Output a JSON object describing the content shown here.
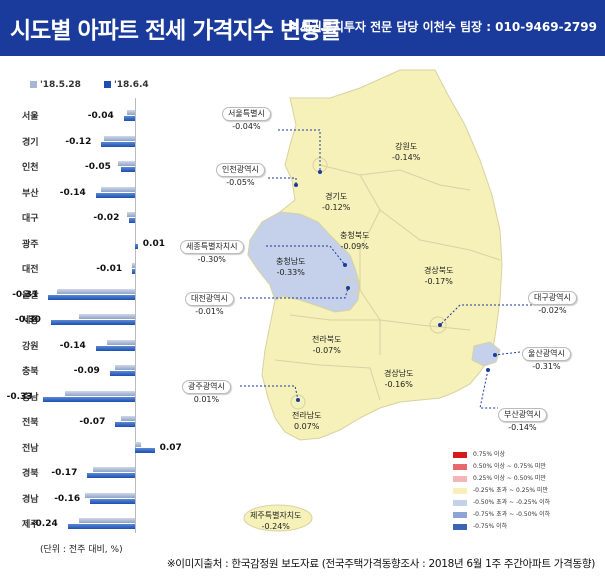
{
  "header": {
    "title": "시도별 아파트 전세 가격지수 변동률",
    "contact": "역세권토지투자 전문 담당 이천수 팀장 : 010-9469-2799"
  },
  "chart_legend": {
    "old": "'18.5.28",
    "new": "'18.6.4",
    "old_color": "#8fa3c8",
    "new_color": "#1f4fae"
  },
  "chart_data": {
    "type": "bar",
    "orientation": "horizontal",
    "categories": [
      "서울",
      "경기",
      "인천",
      "부산",
      "대구",
      "광주",
      "대전",
      "울산",
      "세종",
      "강원",
      "충북",
      "충남",
      "전북",
      "전남",
      "경북",
      "경남",
      "제주"
    ],
    "series": [
      {
        "name": "'18.5.28",
        "values": [
          -0.03,
          -0.11,
          -0.06,
          -0.12,
          -0.03,
          0.0,
          -0.01,
          -0.28,
          -0.2,
          -0.1,
          -0.07,
          -0.25,
          -0.05,
          0.02,
          -0.15,
          -0.18,
          -0.2
        ]
      },
      {
        "name": "'18.6.4",
        "values": [
          -0.04,
          -0.12,
          -0.05,
          -0.14,
          -0.02,
          0.01,
          -0.01,
          -0.31,
          -0.3,
          -0.14,
          -0.09,
          -0.33,
          -0.07,
          0.07,
          -0.17,
          -0.16,
          -0.24
        ]
      }
    ],
    "value_labels": [
      "-0.04",
      "-0.12",
      "-0.05",
      "-0.14",
      "-0.02",
      "0.01",
      "-0.01",
      "-0.31",
      "-0.30",
      "-0.14",
      "-0.09",
      "-0.33",
      "-0.07",
      "0.07",
      "-0.17",
      "-0.16",
      "-0.24"
    ],
    "unit_note": "(단위 : 전주 대비, %)"
  },
  "map": {
    "labels": [
      {
        "name": "서울특별시",
        "value": "-0.04%",
        "boxed": true
      },
      {
        "name": "인천광역시",
        "value": "-0.05%",
        "boxed": true
      },
      {
        "name": "강원도",
        "value": "-0.14%",
        "boxed": false
      },
      {
        "name": "경기도",
        "value": "-0.12%",
        "boxed": false
      },
      {
        "name": "세종특별자치시",
        "value": "-0.30%",
        "boxed": true
      },
      {
        "name": "충청북도",
        "value": "-0.09%",
        "boxed": false
      },
      {
        "name": "충청남도",
        "value": "-0.33%",
        "boxed": false
      },
      {
        "name": "경상북도",
        "value": "-0.17%",
        "boxed": false
      },
      {
        "name": "대전광역시",
        "value": "-0.01%",
        "boxed": true
      },
      {
        "name": "대구광역시",
        "value": "-0.02%",
        "boxed": true
      },
      {
        "name": "전라북도",
        "value": "-0.07%",
        "boxed": false
      },
      {
        "name": "울산광역시",
        "value": "-0.31%",
        "boxed": true
      },
      {
        "name": "경상남도",
        "value": "-0.16%",
        "boxed": false
      },
      {
        "name": "광주광역시",
        "value": "0.01%",
        "boxed": true
      },
      {
        "name": "부산광역시",
        "value": "-0.14%",
        "boxed": true
      },
      {
        "name": "전라남도",
        "value": "0.07%",
        "boxed": false
      },
      {
        "name": "제주특별자치도",
        "value": "-0.24%",
        "boxed": false
      }
    ],
    "scale": [
      {
        "label": "0.75% 이상",
        "color": "#d7191c"
      },
      {
        "label": "0.50% 이상 ~ 0.75% 미만",
        "color": "#e8676a"
      },
      {
        "label": "0.25% 이상 ~ 0.50% 미만",
        "color": "#f2b6b6"
      },
      {
        "label": "-0.25% 초과 ~ 0.25% 미만",
        "color": "#f5f1b8"
      },
      {
        "label": "-0.50% 초과 ~ -0.25% 이하",
        "color": "#c5d0ea"
      },
      {
        "label": "-0.75% 초과 ~ -0.50% 이하",
        "color": "#8da3d4"
      },
      {
        "label": "-0.75% 이하",
        "color": "#3c64b4"
      }
    ]
  },
  "source": "※이미지출처 : 한국감정원 보도자료 (전국주택가격동향조사 : 2018년 6월 1주 주간아파트 가격동향)"
}
